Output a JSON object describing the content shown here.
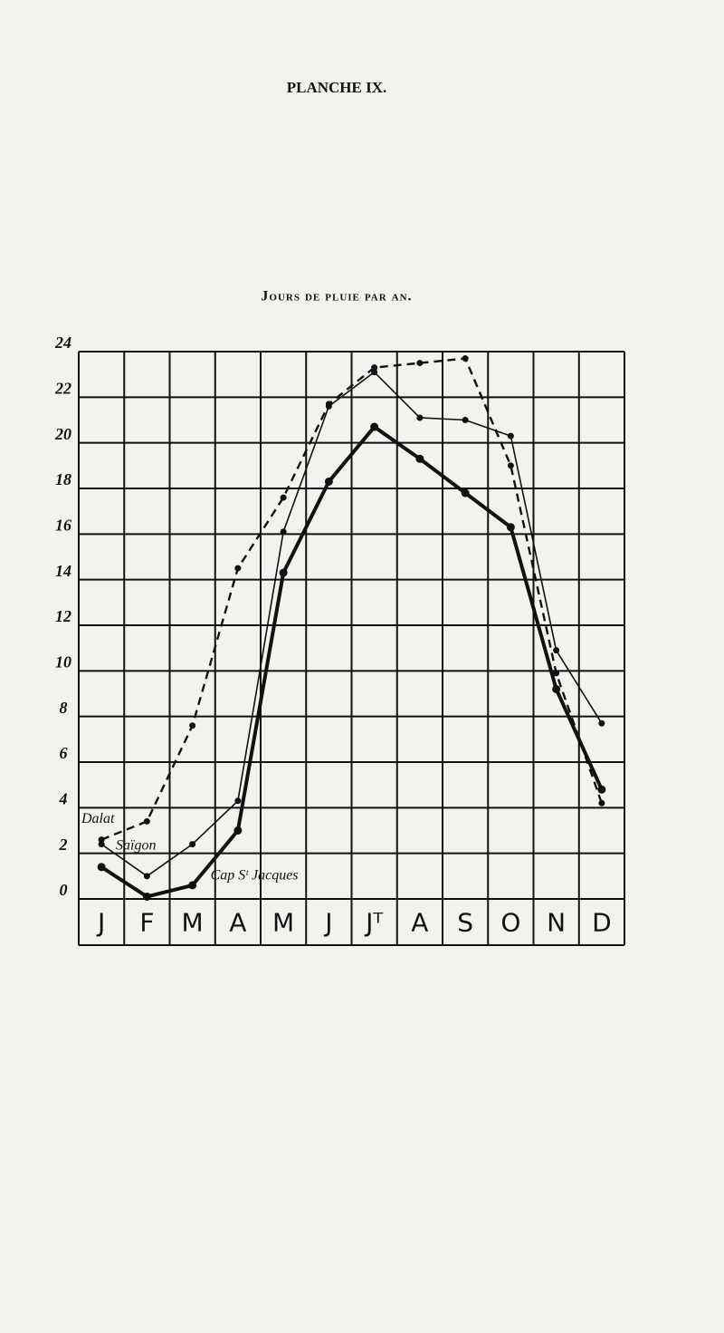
{
  "chart_data": {
    "type": "line",
    "title": "PLANCHE IX.",
    "subtitle": "Jours de pluie par an.",
    "categories": [
      "J",
      "F",
      "M",
      "A",
      "M",
      "J",
      "Jᵀ",
      "A",
      "S",
      "O",
      "N",
      "D"
    ],
    "ylim": [
      0,
      24
    ],
    "yticks": [
      0,
      2,
      4,
      6,
      8,
      10,
      12,
      14,
      16,
      18,
      20,
      22,
      24
    ],
    "grid": true,
    "series": [
      {
        "name": "Dalat",
        "color": "#111111",
        "line_style": "dashed",
        "weight": "medium",
        "values": [
          2.6,
          3.4,
          7.6,
          14.5,
          17.6,
          21.7,
          23.3,
          23.5,
          23.7,
          19.0,
          9.9,
          4.2
        ]
      },
      {
        "name": "Saïgon",
        "color": "#111111",
        "line_style": "solid",
        "weight": "thin",
        "values": [
          2.4,
          1.0,
          2.4,
          4.3,
          16.1,
          21.6,
          23.1,
          21.1,
          21.0,
          20.3,
          10.9,
          7.7
        ]
      },
      {
        "name": "Cap Sᵗ Jacques",
        "color": "#111111",
        "line_style": "solid",
        "weight": "thick",
        "values": [
          1.4,
          0.1,
          0.6,
          3.0,
          14.3,
          18.3,
          20.7,
          19.3,
          17.8,
          16.3,
          9.2,
          4.8
        ]
      }
    ]
  }
}
